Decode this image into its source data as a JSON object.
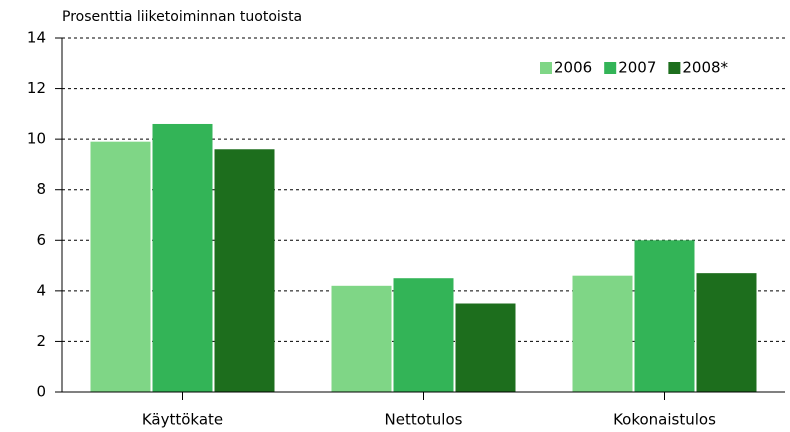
{
  "chart_data": {
    "type": "bar",
    "title": "Prosenttia liiketoiminnan tuotoista",
    "categories": [
      "Käyttökate",
      "Nettotulos",
      "Kokonaistulos"
    ],
    "series": [
      {
        "name": "2006",
        "color": "#7fd686",
        "values": [
          9.9,
          4.2,
          4.6
        ]
      },
      {
        "name": "2007",
        "color": "#33b457",
        "values": [
          10.6,
          4.5,
          6.0
        ]
      },
      {
        "name": "2008*",
        "color": "#1d6e1d",
        "values": [
          9.6,
          3.5,
          4.7
        ]
      }
    ],
    "ylim": [
      0,
      14
    ],
    "yticks": [
      0,
      2,
      4,
      6,
      8,
      10,
      12,
      14
    ],
    "grid": true,
    "legend": "top-right"
  }
}
